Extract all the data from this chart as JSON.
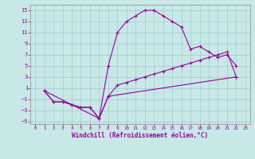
{
  "xlabel": "Windchill (Refroidissement éolien,°C)",
  "background_color": "#c8e8e8",
  "grid_color": "#a0c8c8",
  "line_color": "#990099",
  "spine_color": "#888888",
  "xlim": [
    -0.5,
    23.5
  ],
  "ylim": [
    -5.5,
    16
  ],
  "xticks": [
    0,
    1,
    2,
    3,
    4,
    5,
    6,
    7,
    8,
    9,
    10,
    11,
    12,
    13,
    14,
    15,
    16,
    17,
    18,
    19,
    20,
    21,
    22,
    23
  ],
  "yticks": [
    -5,
    -3,
    -1,
    1,
    3,
    5,
    7,
    9,
    11,
    13,
    15
  ],
  "line1_x": [
    1,
    2,
    3,
    4,
    5,
    6,
    7,
    8,
    9,
    10,
    11,
    12,
    13,
    14,
    15,
    16,
    17,
    18,
    19,
    20,
    21,
    22
  ],
  "line1_y": [
    0.5,
    -1.5,
    -1.5,
    -2,
    -2.5,
    -2.5,
    -4.5,
    5,
    11,
    13,
    14,
    15,
    15,
    14,
    13,
    12,
    8,
    8.5,
    7.5,
    6.5,
    7,
    5
  ],
  "line2_x": [
    1,
    2,
    3,
    4,
    5,
    6,
    7,
    8,
    9,
    10,
    11,
    12,
    13,
    14,
    15,
    16,
    17,
    18,
    19,
    20,
    21,
    22
  ],
  "line2_y": [
    0.5,
    -1.5,
    -1.5,
    -2,
    -2.5,
    -2.5,
    -4.5,
    -0.5,
    1.5,
    2,
    2.5,
    3,
    3.5,
    4,
    4.5,
    5,
    5.5,
    6,
    6.5,
    7,
    7.5,
    3
  ],
  "line3_x": [
    1,
    7,
    8,
    22
  ],
  "line3_y": [
    0.5,
    -4.5,
    -0.5,
    3
  ],
  "figsize": [
    3.2,
    2.0
  ],
  "dpi": 100,
  "tick_fontsize": 5,
  "xlabel_fontsize": 5.5,
  "lw": 0.8,
  "ms": 2.5
}
